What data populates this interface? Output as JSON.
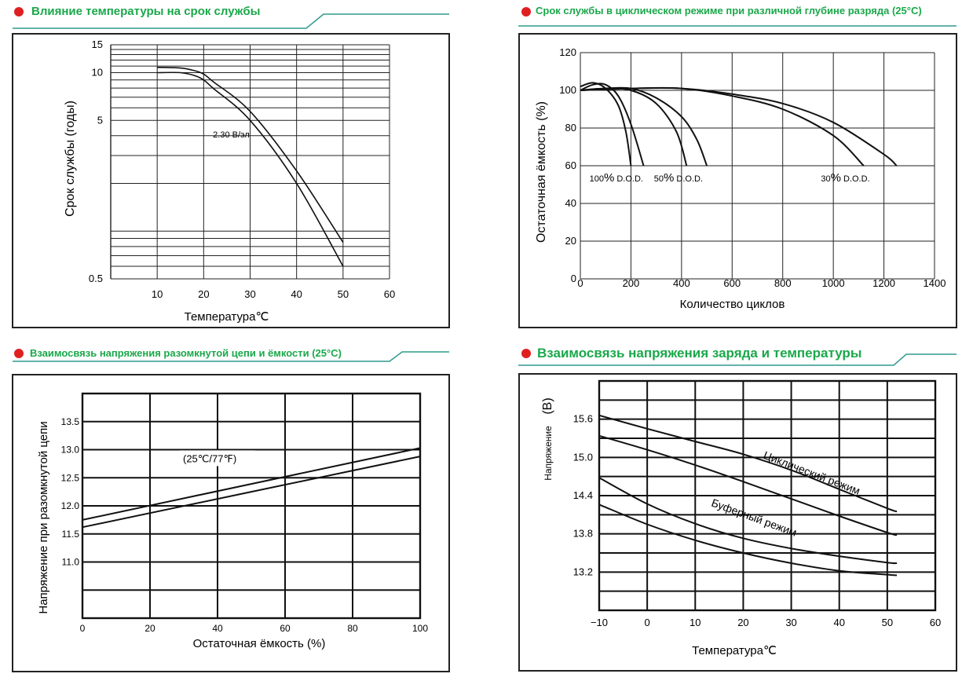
{
  "colors": {
    "accent_green": "#1aa84a",
    "bullet_red": "#e02020",
    "rule_teal": "#2f9a8e",
    "ink": "#222222"
  },
  "panels": {
    "p1": {
      "title": "Влияние температуры на срок службы"
    },
    "p2": {
      "title": "Срок службы в циклическом режиме при различной глубине разряда  (25°C)"
    },
    "p3": {
      "title": "Взаимосвязь напряжения разомкнутой цепи и ёмкости (25°C)"
    },
    "p4": {
      "title": "Взаимосвязь напряжения заряда и температуры"
    }
  },
  "chart_data": [
    {
      "type": "line",
      "xlabel": "Температура℃",
      "ylabel": "Срок службы (годы)",
      "xlim": [
        0,
        60
      ],
      "x_ticks": [
        10,
        20,
        30,
        40,
        50,
        60
      ],
      "y_scale": "log",
      "ylim": [
        0.5,
        15
      ],
      "y_tick_labels": [
        "15",
        "10",
        "5",
        "0.5"
      ],
      "y_tick_values": [
        15,
        10,
        5,
        0.5
      ],
      "annotations": [
        {
          "text": "2.30 В/эл",
          "x": 22,
          "y": 3.9
        }
      ],
      "series": [
        {
          "x": [
            10,
            15,
            18,
            20,
            22,
            30,
            40,
            50
          ],
          "y": [
            10.8,
            10.7,
            10.3,
            9.8,
            8.8,
            5.7,
            2.4,
            0.85
          ]
        },
        {
          "x": [
            10,
            15,
            18,
            20,
            22,
            30,
            40,
            50
          ],
          "y": [
            10.0,
            10.0,
            9.6,
            9.0,
            8.0,
            5.0,
            2.0,
            0.6
          ]
        }
      ]
    },
    {
      "type": "line",
      "xlabel": "Количество циклов",
      "ylabel": "Остаточная ёмкость (%)",
      "xlim": [
        0,
        1400
      ],
      "ylim": [
        0,
        120
      ],
      "x_ticks": [
        0,
        200,
        400,
        600,
        800,
        1000,
        1200,
        1400
      ],
      "y_ticks": [
        0,
        20,
        40,
        60,
        80,
        100,
        120
      ],
      "annotations": [
        {
          "num": "100",
          "pct": "%",
          "rest": " D.O.D.",
          "x": 185,
          "y": 58
        },
        {
          "num": "50",
          "pct": "%",
          "rest": " D.O.D.",
          "x": 440,
          "y": 58
        },
        {
          "num": "30",
          "pct": "%",
          "rest": " D.O.D.",
          "x": 1100,
          "y": 58
        }
      ],
      "series": [
        {
          "x": [
            0,
            50,
            100,
            150,
            180,
            200
          ],
          "y": [
            102,
            104,
            101,
            92,
            78,
            60
          ]
        },
        {
          "x": [
            0,
            50,
            100,
            150,
            200,
            250
          ],
          "y": [
            100,
            103,
            103,
            97,
            82,
            60
          ]
        },
        {
          "x": [
            0,
            100,
            200,
            300,
            380,
            420
          ],
          "y": [
            100,
            101,
            100,
            93,
            78,
            60
          ]
        },
        {
          "x": [
            0,
            100,
            200,
            300,
            400,
            460,
            500
          ],
          "y": [
            100,
            101,
            101,
            96,
            86,
            74,
            60
          ]
        },
        {
          "x": [
            0,
            200,
            400,
            600,
            800,
            1000,
            1120
          ],
          "y": [
            100,
            101,
            101,
            97,
            90,
            76,
            60
          ]
        },
        {
          "x": [
            0,
            200,
            400,
            600,
            800,
            1000,
            1200,
            1250
          ],
          "y": [
            100,
            101,
            101,
            98,
            93,
            83,
            66,
            60
          ]
        }
      ]
    },
    {
      "type": "line",
      "xlabel": "Остаточная ёмкость (%)",
      "ylabel": "Напряжение при разомкнутой цепи",
      "xlim": [
        0,
        100
      ],
      "ylim": [
        10.0,
        14.0
      ],
      "x_ticks": [
        0,
        20,
        40,
        60,
        80,
        100
      ],
      "y_ticks": [
        11.0,
        11.5,
        12.0,
        12.5,
        13.0,
        13.5
      ],
      "y_tick_labels": [
        "11.0",
        "11.5",
        "12.0",
        "12.5",
        "13.0",
        "13.5"
      ],
      "annotations": [
        {
          "text": "(25℃/77℉)",
          "x": 40,
          "y": 12.75
        }
      ],
      "series": [
        {
          "x": [
            0,
            100
          ],
          "y": [
            11.75,
            13.03
          ]
        },
        {
          "x": [
            0,
            100
          ],
          "y": [
            11.62,
            12.88
          ]
        }
      ]
    },
    {
      "type": "line",
      "xlabel": "Температура℃",
      "ylabel": "Напряжение",
      "y_unit": "(В)",
      "xlim": [
        -10,
        60
      ],
      "ylim": [
        12.6,
        16.2
      ],
      "x_ticks": [
        -10,
        0,
        10,
        20,
        30,
        40,
        50,
        60
      ],
      "x_tick_labels": [
        "−10",
        "0",
        "10",
        "20",
        "30",
        "40",
        "50",
        "60"
      ],
      "y_ticks": [
        13.2,
        13.8,
        14.4,
        15.0,
        15.6
      ],
      "y_tick_labels": [
        "13.2",
        "13.8",
        "14.4",
        "15.0",
        "15.6"
      ],
      "annotations": [
        {
          "text": "Циклический режим",
          "x": 34,
          "y": 14.7
        },
        {
          "text": "Буферный режим",
          "x": 22,
          "y": 14.0
        }
      ],
      "series": [
        {
          "x": [
            -10,
            0,
            10,
            20,
            30,
            40,
            50,
            52
          ],
          "y": [
            15.66,
            15.45,
            15.25,
            15.05,
            14.8,
            14.5,
            14.2,
            14.15
          ]
        },
        {
          "x": [
            -10,
            0,
            10,
            20,
            30,
            40,
            50,
            52
          ],
          "y": [
            15.34,
            15.12,
            14.88,
            14.62,
            14.35,
            14.08,
            13.82,
            13.78
          ]
        },
        {
          "x": [
            -10,
            0,
            10,
            20,
            30,
            40,
            50,
            52
          ],
          "y": [
            14.68,
            14.27,
            13.96,
            13.73,
            13.57,
            13.45,
            13.35,
            13.34
          ]
        },
        {
          "x": [
            -10,
            0,
            10,
            20,
            30,
            40,
            50,
            52
          ],
          "y": [
            14.26,
            13.95,
            13.7,
            13.5,
            13.34,
            13.22,
            13.16,
            13.15
          ]
        }
      ]
    }
  ]
}
